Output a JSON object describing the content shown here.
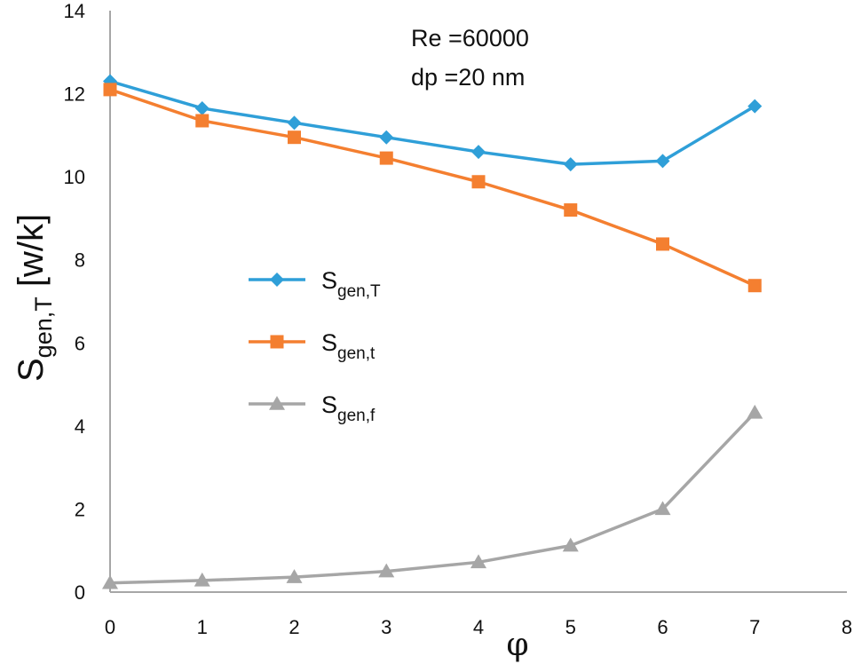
{
  "chart_data": {
    "type": "line",
    "title": "",
    "annotations": [
      "Re =60000",
      "dp =20 nm"
    ],
    "xlabel": "φ",
    "ylabel": {
      "main": "S",
      "sub": "gen,T",
      "rest": " [w/k]"
    },
    "xlim": [
      0,
      8
    ],
    "ylim": [
      0,
      14
    ],
    "x_ticks": [
      "0",
      "1",
      "2",
      "3",
      "4",
      "5",
      "6",
      "7",
      "8"
    ],
    "y_ticks": [
      "0",
      "2",
      "4",
      "6",
      "8",
      "10",
      "12",
      "14"
    ],
    "grid": false,
    "legend_position": "center-left",
    "x": [
      0,
      1,
      2,
      3,
      4,
      5,
      6,
      7
    ],
    "series": [
      {
        "name": "Sgen,T",
        "main": "S",
        "sub": "gen,T",
        "marker": "diamond",
        "color": "#2f9fd8",
        "values": [
          12.3,
          11.65,
          11.3,
          10.95,
          10.6,
          10.3,
          10.38,
          11.7
        ]
      },
      {
        "name": "Sgen,t",
        "main": "S",
        "sub": "gen,t",
        "marker": "square",
        "color": "#f47f30",
        "values": [
          12.1,
          11.35,
          10.95,
          10.45,
          9.88,
          9.2,
          8.38,
          7.38
        ]
      },
      {
        "name": "Sgen,f",
        "main": "S",
        "sub": "gen,f",
        "marker": "triangle",
        "color": "#a6a6a6",
        "values": [
          0.22,
          0.28,
          0.36,
          0.5,
          0.72,
          1.12,
          2.0,
          4.32
        ]
      }
    ]
  }
}
